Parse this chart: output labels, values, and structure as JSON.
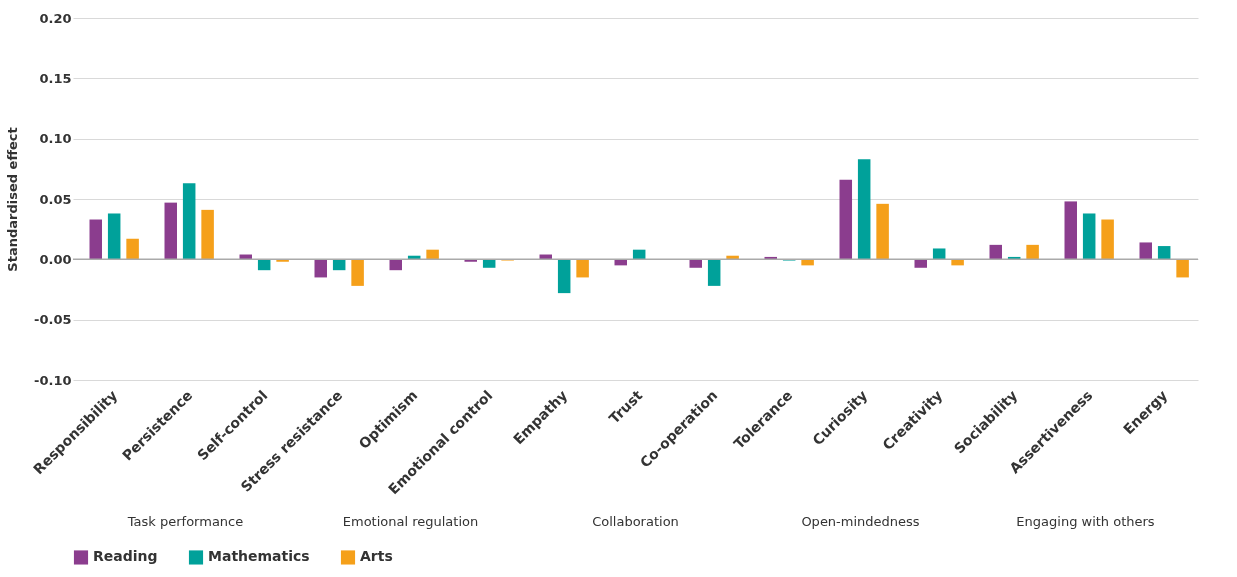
{
  "chart_data": {
    "type": "bar",
    "ylabel": "Standardised effect",
    "categories": [
      "Responsibility",
      "Persistence",
      "Self-control",
      "Stress resistance",
      "Optimism",
      "Emotional control",
      "Empathy",
      "Trust",
      "Co-operation",
      "Tolerance",
      "Curiosity",
      "Creativity",
      "Sociability",
      "Assertiveness",
      "Energy"
    ],
    "series": [
      {
        "name": "Reading",
        "color": "#8b3d8e",
        "values": [
          0.033,
          0.047,
          0.004,
          -0.015,
          -0.009,
          -0.002,
          0.004,
          -0.005,
          -0.007,
          0.002,
          0.066,
          -0.007,
          0.012,
          0.048,
          0.014
        ]
      },
      {
        "name": "Mathematics",
        "color": "#00a19a",
        "values": [
          0.038,
          0.063,
          -0.009,
          -0.009,
          0.003,
          -0.007,
          -0.028,
          0.008,
          -0.022,
          -0.001,
          0.083,
          0.009,
          0.002,
          0.038,
          0.011
        ]
      },
      {
        "name": "Arts",
        "color": "#f5a01a",
        "values": [
          0.017,
          0.041,
          -0.002,
          -0.022,
          0.008,
          -0.001,
          -0.015,
          0.0,
          0.003,
          -0.005,
          0.046,
          -0.005,
          0.012,
          0.033,
          -0.015
        ]
      }
    ],
    "ylim": [
      -0.1,
      0.2
    ],
    "yticks": [
      {
        "value": -0.1,
        "label": "-0.10"
      },
      {
        "value": -0.05,
        "label": "-0.05"
      },
      {
        "value": 0,
        "label": "0.00"
      },
      {
        "value": 0.05,
        "label": "0.05"
      },
      {
        "value": 0.1,
        "label": "0.10"
      },
      {
        "value": 0.15,
        "label": "0.15"
      },
      {
        "value": 0.2,
        "label": "0.20"
      }
    ],
    "annotations": [
      "Task performance",
      "Emotional regulation",
      "Collaboration",
      "Open-mindedness",
      "Engaging with others"
    ],
    "grid": "y",
    "legend": "bottom"
  }
}
